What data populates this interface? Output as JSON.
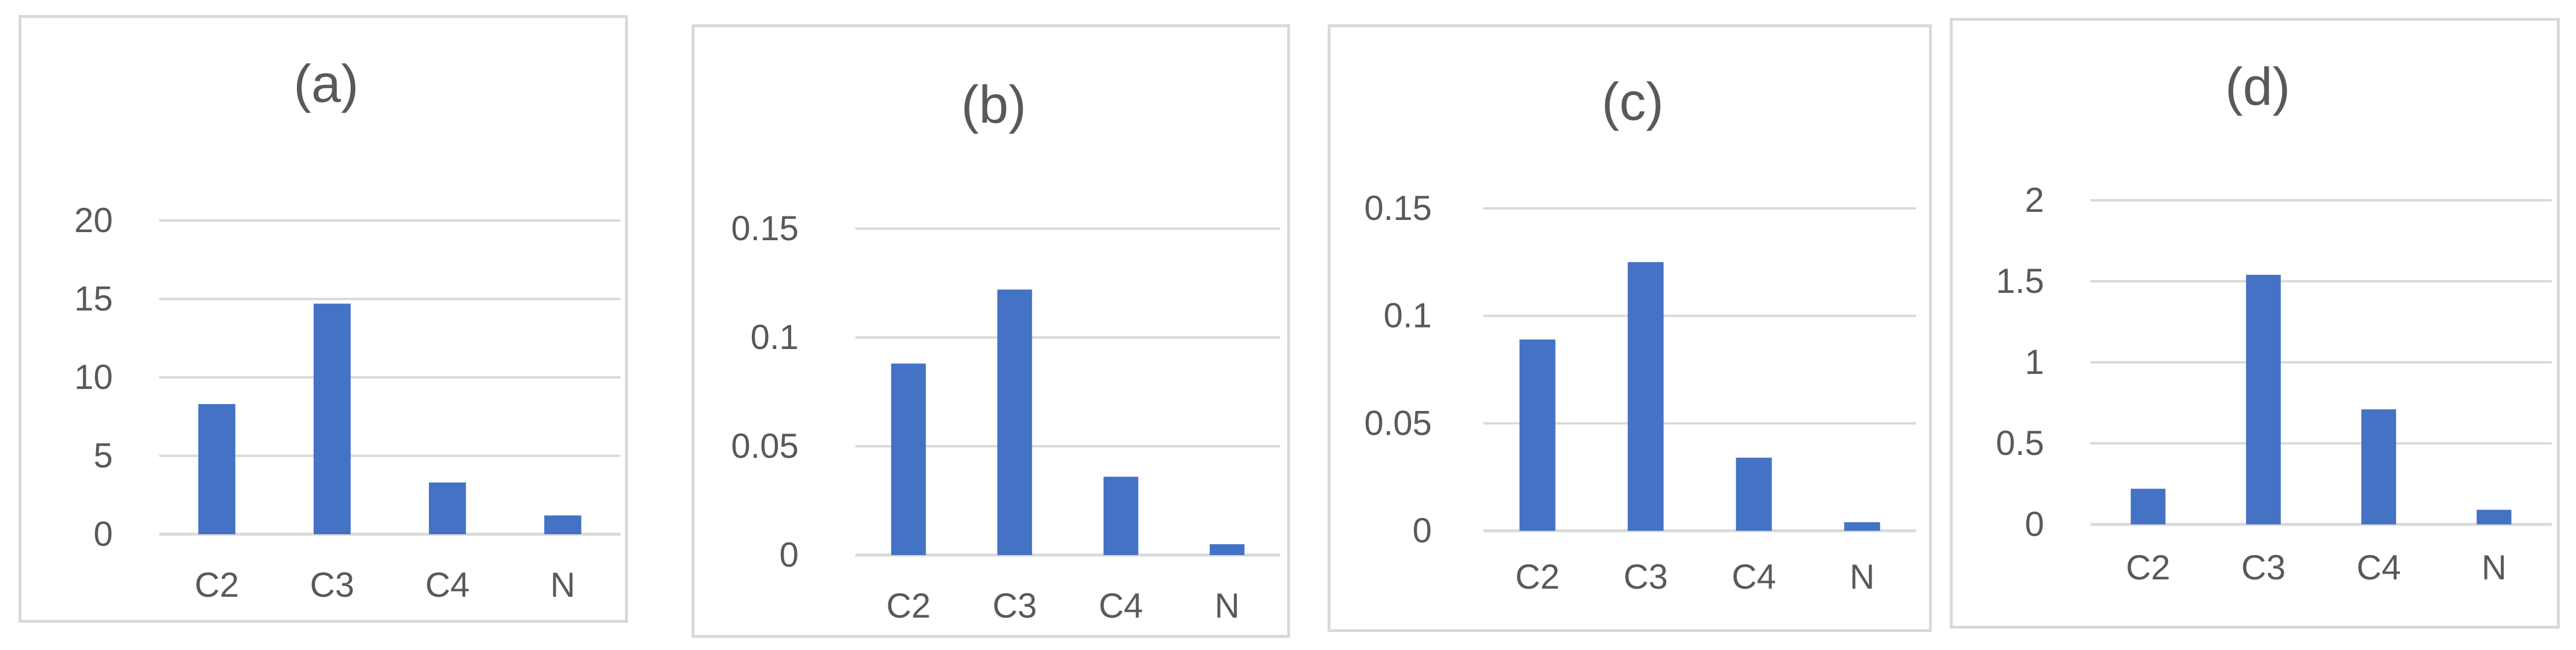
{
  "colors": {
    "bar": "#4472c4",
    "grid": "#d9d9d9",
    "text": "#595959",
    "border": "#d9d9d9"
  },
  "chart_data": [
    {
      "type": "bar",
      "title": "(a)",
      "categories": [
        "C2",
        "C3",
        "C4",
        "N"
      ],
      "values": [
        8.3,
        14.7,
        3.3,
        1.2
      ],
      "yticks": [
        "0",
        "5",
        "10",
        "15",
        "20"
      ],
      "ylim": [
        0,
        20
      ],
      "grid": true,
      "legend": "none"
    },
    {
      "type": "bar",
      "title": "(b)",
      "categories": [
        "C2",
        "C3",
        "C4",
        "N"
      ],
      "values": [
        0.088,
        0.122,
        0.036,
        0.005
      ],
      "yticks": [
        "0",
        "0.05",
        "0.1",
        "0.15"
      ],
      "ylim": [
        0,
        0.15
      ],
      "grid": true,
      "legend": "none"
    },
    {
      "type": "bar",
      "title": "(c)",
      "categories": [
        "C2",
        "C3",
        "C4",
        "N"
      ],
      "values": [
        0.089,
        0.125,
        0.034,
        0.004
      ],
      "yticks": [
        "0",
        "0.05",
        "0.1",
        "0.15"
      ],
      "ylim": [
        0,
        0.15
      ],
      "grid": true,
      "legend": "none"
    },
    {
      "type": "bar",
      "title": "(d)",
      "categories": [
        "C2",
        "C3",
        "C4",
        "N"
      ],
      "values": [
        0.22,
        1.54,
        0.71,
        0.09
      ],
      "yticks": [
        "0",
        "0.5",
        "1",
        "1.5",
        "2"
      ],
      "ylim": [
        0,
        2
      ],
      "grid": true,
      "legend": "none"
    }
  ]
}
